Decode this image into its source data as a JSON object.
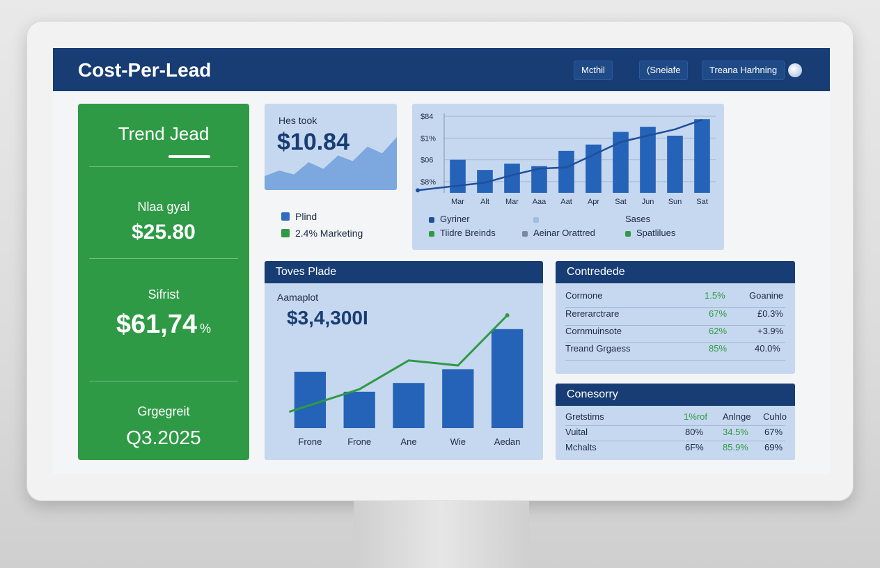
{
  "app": {
    "title": "Cost-Per-Lead"
  },
  "header": {
    "buttons": [
      {
        "label": "Mcthil"
      },
      {
        "label": "(Sneiafe"
      },
      {
        "label": "Treana Harhning"
      }
    ],
    "avatar_icon": "avatar-icon"
  },
  "sidebar": {
    "title": "Trend Jead",
    "metrics": [
      {
        "label": "Nlaa gyal",
        "value": "$25.80"
      },
      {
        "label": "Sifrist",
        "value": "$61,74",
        "suffix": "%"
      },
      {
        "label": "Grgegreit",
        "value": "Q3.2025"
      }
    ]
  },
  "kpi_card": {
    "label": "Hes took",
    "value": "$10.84",
    "sparkline": [
      0.25,
      0.35,
      0.28,
      0.5,
      0.38,
      0.62,
      0.52,
      0.78,
      0.66,
      0.95
    ]
  },
  "kpi_legend": [
    {
      "label": "Plind",
      "color": "#2f6cc0"
    },
    {
      "label": "2.4% Marketing",
      "color": "#2f9a45"
    }
  ],
  "top_chart": {
    "legend": [
      {
        "label": "Gyriner",
        "color": "#1f4f9c"
      },
      {
        "label": "Sases",
        "color": "#9fbde3"
      },
      {
        "label": "Tiidre Breinds",
        "color": "#2f9a45"
      },
      {
        "label": "Aeinar Orattred",
        "color": "#7a8a9c"
      },
      {
        "label": "Spatlilues",
        "color": "#2f9a45"
      }
    ]
  },
  "mid_panel": {
    "title": "Toves Plade",
    "sub_label": "Aamaplot",
    "value": "$3,4,300I"
  },
  "table1": {
    "title": "Contredede",
    "rows": [
      {
        "name": "Cormone",
        "a": "1.5%",
        "b": "Goanine"
      },
      {
        "name": "Rererarctrare",
        "a": "67%",
        "b": "£0.3%"
      },
      {
        "name": "Cornmuinsote",
        "a": "62%",
        "b": "+3.9%"
      },
      {
        "name": "Treand Grgaess",
        "a": "85%",
        "b": "40.0%"
      }
    ]
  },
  "table2": {
    "title": "Conesorry",
    "header": {
      "name": "Gretstims",
      "a": "1%rof",
      "b": "Anlnge",
      "c": "Cuhlo"
    },
    "rows": [
      {
        "name": "Vuital",
        "a": "80%",
        "b": "34.5%",
        "c": "67%"
      },
      {
        "name": "Mchalts",
        "a": "6F%",
        "b": "85.9%",
        "c": "69%"
      }
    ]
  },
  "chart_data": [
    {
      "type": "bar",
      "title": "",
      "categories": [
        "Mar",
        "Alt",
        "Mar",
        "Aaa",
        "Aat",
        "Apr",
        "Sat",
        "Jun",
        "Sun",
        "Sat"
      ],
      "y_tick_labels": [
        "$84",
        "$1%",
        "$06",
        "$8%"
      ],
      "series": [
        {
          "type": "bar",
          "values": [
            52,
            36,
            46,
            42,
            66,
            76,
            96,
            104,
            90,
            116
          ]
        },
        {
          "type": "line",
          "values": [
            4,
            16,
            28,
            38,
            40,
            60,
            80,
            90,
            100,
            115
          ]
        }
      ],
      "ylim": [
        0,
        125
      ]
    },
    {
      "type": "bar",
      "title": "Toves Plade",
      "categories": [
        "Frone",
        "Frone",
        "Ane",
        "Wie",
        "Aedan"
      ],
      "series": [
        {
          "type": "bar",
          "values": [
            45,
            29,
            36,
            47,
            79
          ]
        },
        {
          "type": "line",
          "values": [
            13,
            31,
            54,
            50,
            90
          ]
        }
      ],
      "ylim": [
        0,
        100
      ]
    }
  ]
}
